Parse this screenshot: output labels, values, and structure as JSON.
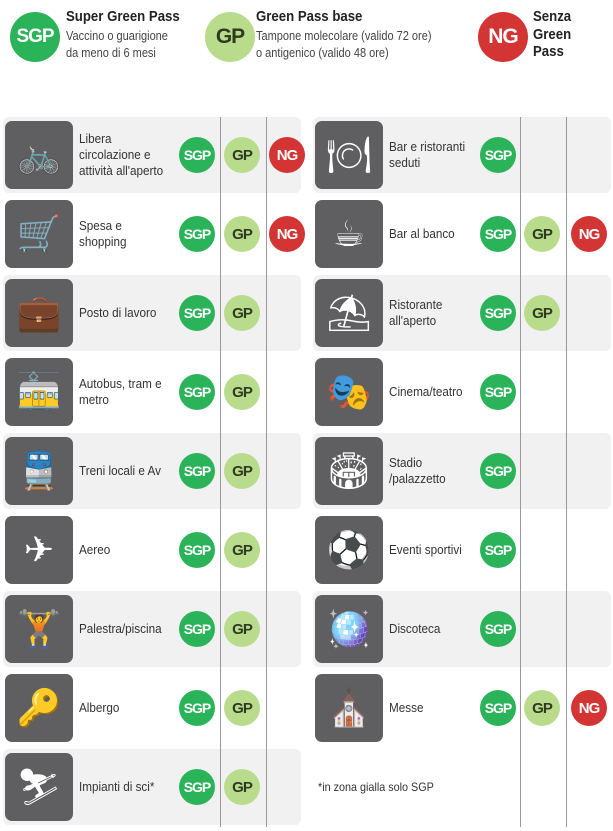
{
  "legend": [
    {
      "badge": "SGP",
      "title": "Super Green Pass",
      "lines": [
        "Vaccino o guarigione",
        "da meno di 6 mesi"
      ]
    },
    {
      "badge": "GP",
      "title": "Green Pass base",
      "lines": [
        "Tampone molecolare (valido 72 ore)",
        "o antigenico (valido 48 ore)"
      ]
    },
    {
      "badge": "NG",
      "title": "Senza",
      "lines": [
        "Green Pass"
      ]
    }
  ],
  "colors": {
    "SGP": "#2bb35a",
    "GP": "#b8dc8c",
    "NG": "#d33434",
    "icon_bg": "#5f5f61"
  },
  "left_column": [
    {
      "label": "Libera circolazione e attività all'aperto",
      "icon": "bicycle-icon",
      "glyph": "🚲",
      "passes": [
        "SGP",
        "GP",
        "NG"
      ]
    },
    {
      "label": "Spesa e shopping",
      "icon": "shopping-cart-icon",
      "glyph": "🛒",
      "passes": [
        "SGP",
        "GP",
        "NG"
      ]
    },
    {
      "label": "Posto di lavoro",
      "icon": "briefcase-icon",
      "glyph": "💼",
      "passes": [
        "SGP",
        "GP"
      ]
    },
    {
      "label": "Autobus, tram e metro",
      "icon": "tram-icon",
      "glyph": "🚋",
      "passes": [
        "SGP",
        "GP"
      ]
    },
    {
      "label": "Treni locali e Av",
      "icon": "train-icon",
      "glyph": "🚆",
      "passes": [
        "SGP",
        "GP"
      ]
    },
    {
      "label": "Aereo",
      "icon": "airplane-icon",
      "glyph": "✈",
      "passes": [
        "SGP",
        "GP"
      ]
    },
    {
      "label": "Palestra/piscina",
      "icon": "exercise-bike-icon",
      "glyph": "🏋",
      "passes": [
        "SGP",
        "GP"
      ]
    },
    {
      "label": "Albergo",
      "icon": "hotel-key-icon",
      "glyph": "🔑",
      "passes": [
        "SGP",
        "GP"
      ]
    },
    {
      "label": "Impianti di sci*",
      "icon": "skier-icon",
      "glyph": "⛷",
      "passes": [
        "SGP",
        "GP"
      ]
    }
  ],
  "right_column": [
    {
      "label": "Bar e ristoranti seduti",
      "icon": "table-chairs-icon",
      "glyph": "🍽",
      "passes": [
        "SGP"
      ]
    },
    {
      "label": "Bar al banco",
      "icon": "coffee-cup-icon",
      "glyph": "☕",
      "passes": [
        "SGP",
        "GP",
        "NG"
      ]
    },
    {
      "label": "Ristorante all'aperto",
      "icon": "umbrella-table-icon",
      "glyph": "⛱",
      "passes": [
        "SGP",
        "GP"
      ]
    },
    {
      "label": "Cinema/teatro",
      "icon": "cinema-seats-icon",
      "glyph": "🎭",
      "passes": [
        "SGP"
      ]
    },
    {
      "label": "Stadio /palazzetto",
      "icon": "stadium-icon",
      "glyph": "🏟",
      "passes": [
        "SGP"
      ]
    },
    {
      "label": "Eventi sportivi",
      "icon": "sports-balls-icon",
      "glyph": "⚽",
      "passes": [
        "SGP"
      ]
    },
    {
      "label": "Discoteca",
      "icon": "disco-ball-icon",
      "glyph": "🪩",
      "passes": [
        "SGP"
      ]
    },
    {
      "label": "Messe",
      "icon": "church-icon",
      "glyph": "⛪",
      "passes": [
        "SGP",
        "GP",
        "NG"
      ]
    }
  ],
  "footnote": "*in zona gialla solo SGP"
}
